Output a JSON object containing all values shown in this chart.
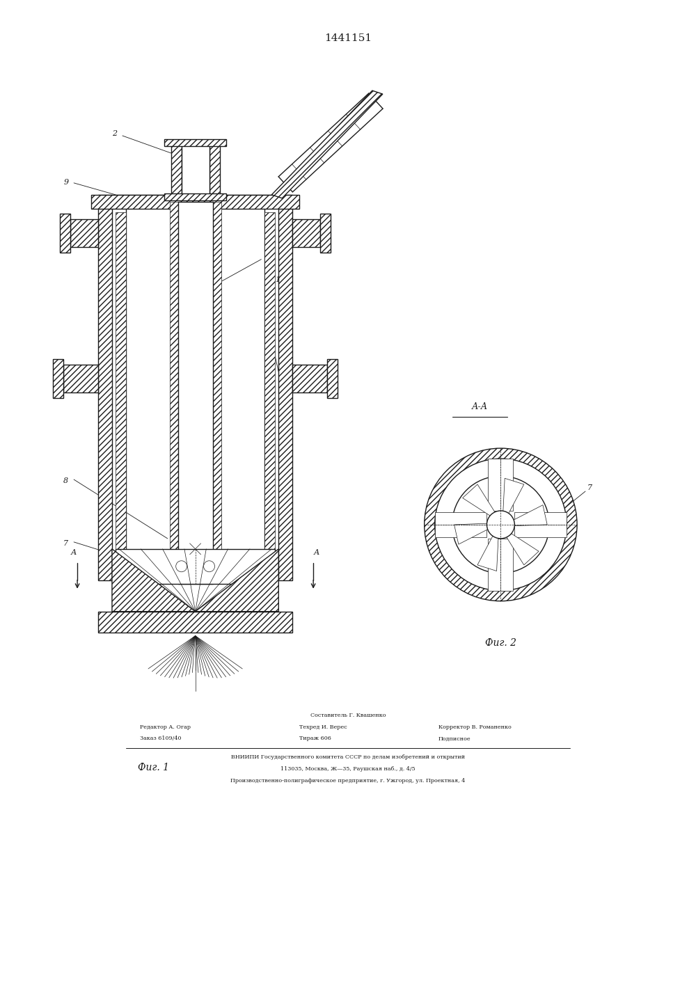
{
  "patent_number": "1441151",
  "fig1_label": "Фиг. 1",
  "fig2_label": "Фиг. 2",
  "aa_label": "А-А",
  "background_color": "#ffffff",
  "line_color": "#1a1a1a",
  "footer_line1_center": "Составитель Г. Квашенко",
  "footer_line1_left": "Редактор А. Огар",
  "footer_line1_right": "Корректор В. Романенко",
  "footer_line2_left": "Заказ 6109/40",
  "footer_line2_center": "Техред И. Верес",
  "footer_line2_right": "Подписное",
  "footer_line3_left": "Тираж 606",
  "footer_line3": "ВНИИПИ Государственного комитета СССР по делам изобретений и открытий",
  "footer_line4": "113035, Москва, Ж—35, Раушская наб., д. 4/5",
  "footer_line5": "Производственно-полиграфическое предприятие, г. Ужгород, ул. Проектная, 4"
}
